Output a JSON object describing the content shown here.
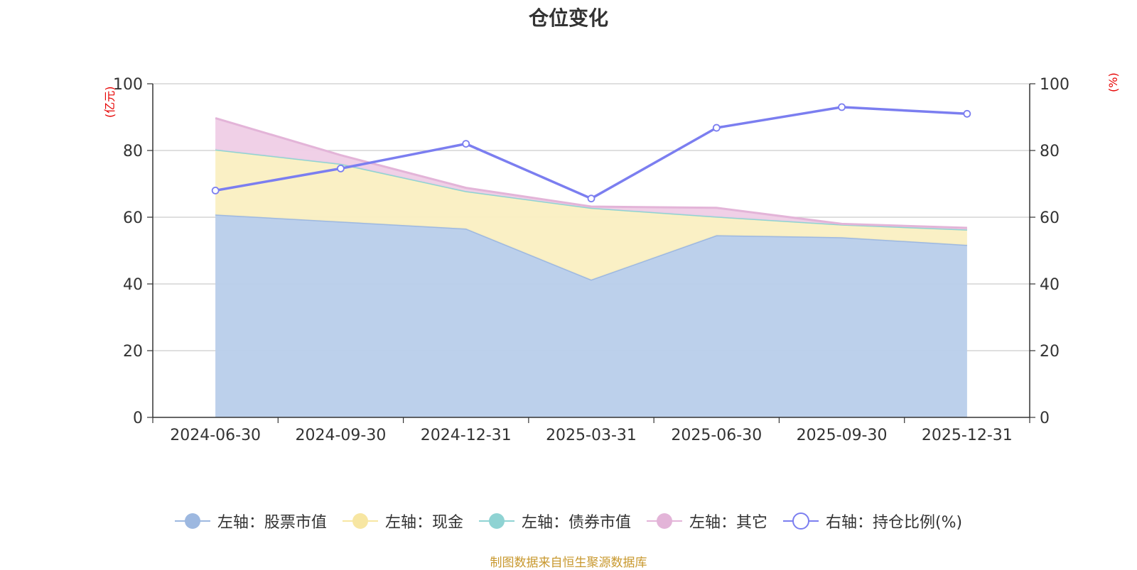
{
  "chart_data": {
    "type": "area",
    "title": "仓位变化",
    "categories": [
      "2024-06-30",
      "2024-09-30",
      "2024-12-31",
      "2025-03-31",
      "2025-06-30",
      "2025-09-30",
      "2025-12-31"
    ],
    "left_axis": {
      "unit": "(亿元)",
      "ylim": [
        0,
        100
      ],
      "ticks": [
        0,
        20,
        40,
        60,
        80,
        100
      ]
    },
    "right_axis": {
      "unit": "(%)",
      "ylim": [
        0,
        100
      ],
      "ticks": [
        0,
        20,
        40,
        60,
        80,
        100
      ]
    },
    "series": [
      {
        "name": "左轴：股票市值",
        "axis": "left",
        "stack": true,
        "color": "#9db8e0",
        "fill": "#b8cdea",
        "values": [
          60.8,
          58.7,
          56.6,
          41.3,
          54.6,
          54.0,
          51.7
        ]
      },
      {
        "name": "左轴：现金",
        "axis": "left",
        "stack": true,
        "color": "#f7e6a2",
        "fill": "#faefc2",
        "values": [
          19.5,
          17.3,
          11.2,
          21.5,
          5.6,
          3.8,
          4.6
        ]
      },
      {
        "name": "左轴：债券市值",
        "axis": "left",
        "stack": true,
        "color": "#8fd3d3",
        "fill": "#c3e8e8",
        "values": [
          0,
          0,
          0,
          0,
          0,
          0,
          0
        ]
      },
      {
        "name": "左轴：其它",
        "axis": "left",
        "stack": true,
        "color": "#e3b4d8",
        "fill": "#efcde6",
        "values": [
          9.4,
          2.6,
          1.0,
          0.4,
          2.6,
          0.2,
          0.5
        ]
      },
      {
        "name": "右轴：持仓比例(%)",
        "axis": "right",
        "type": "line",
        "color": "#7b7ef0",
        "values": [
          68.0,
          74.6,
          82.0,
          65.6,
          86.8,
          93.0,
          91.0
        ]
      }
    ],
    "source": "制图数据来自恒生聚源数据库"
  }
}
